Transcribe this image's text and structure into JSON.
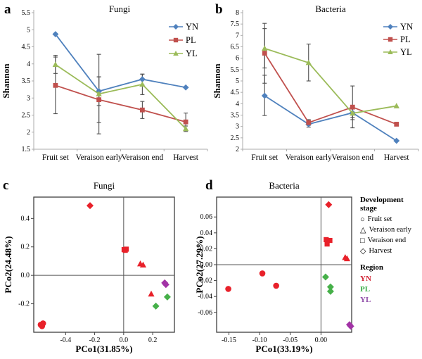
{
  "legend": {
    "stage_title": "Development stage",
    "stages": [
      {
        "label": "Fruit set",
        "shape": "circle",
        "glyph": "○"
      },
      {
        "label": "Veraison early",
        "shape": "triangle",
        "glyph": "△"
      },
      {
        "label": "Veraison end",
        "shape": "square",
        "glyph": "□"
      },
      {
        "label": "Harvest",
        "shape": "diamond",
        "glyph": "◇"
      }
    ],
    "region_title": "Region",
    "regions": [
      {
        "label": "YN",
        "color": "#D02030"
      },
      {
        "label": "PL",
        "color": "#3AAE49"
      },
      {
        "label": "YL",
        "color": "#8F4BA8"
      }
    ]
  },
  "chart_data": [
    {
      "id": "a",
      "panel_letter": "a",
      "type": "line",
      "title": "Fungi",
      "ylabel": "Shannon",
      "categories": [
        "Fruit set",
        "Veraison early",
        "Veraison end",
        "Harvest"
      ],
      "ylim": [
        1.5,
        5.5
      ],
      "yticks": [
        1.5,
        2,
        2.5,
        3,
        3.5,
        4,
        4.5,
        5,
        5.5
      ],
      "ytick_labels": [
        "1.5",
        "2",
        "2.5",
        "3",
        "3.5",
        "4",
        "4.5",
        "5",
        "5.5"
      ],
      "legend_position": "top-right",
      "series": [
        {
          "name": "YN",
          "color": "#4F81BD",
          "marker": "diamond",
          "values": [
            4.87,
            3.2,
            3.55,
            3.31
          ],
          "errors": [
            null,
            [
              2.78,
              3.62
            ],
            [
              3.38,
              3.7
            ],
            null
          ]
        },
        {
          "name": "PL",
          "color": "#C0504D",
          "marker": "square",
          "values": [
            3.37,
            2.95,
            2.65,
            2.3
          ],
          "errors": [
            [
              2.54,
              4.2
            ],
            [
              2.28,
              3.62
            ],
            [
              2.4,
              2.9
            ],
            [
              2.05,
              2.56
            ]
          ]
        },
        {
          "name": "YL",
          "color": "#9BBB59",
          "marker": "triangle",
          "values": [
            3.98,
            3.12,
            3.4,
            2.1
          ],
          "errors": [
            [
              3.72,
              4.25
            ],
            [
              1.95,
              4.28
            ],
            [
              3.1,
              3.7
            ],
            [
              2.02,
              2.18
            ]
          ]
        }
      ]
    },
    {
      "id": "b",
      "panel_letter": "b",
      "type": "line",
      "title": "Bacteria",
      "ylabel": "Shannon",
      "categories": [
        "Fruit set",
        "Veraison early",
        "Veraison end",
        "Harvest"
      ],
      "ylim": [
        2,
        8
      ],
      "yticks": [
        2,
        2.5,
        3,
        3.5,
        4,
        4.5,
        5,
        5.5,
        6,
        6.5,
        7,
        7.5,
        8
      ],
      "ytick_labels": [
        "2",
        "2.5",
        "3",
        "3.5",
        "4",
        "4.5",
        "5",
        "5.5",
        "6",
        "6.5",
        "7",
        "7.5",
        "8"
      ],
      "legend_position": "top-right",
      "series": [
        {
          "name": "YN",
          "color": "#4F81BD",
          "marker": "diamond",
          "values": [
            4.35,
            3.1,
            3.6,
            2.37
          ],
          "errors": [
            [
              3.48,
              5.25
            ],
            [
              2.97,
              3.25
            ],
            [
              3.3,
              3.9
            ],
            null
          ]
        },
        {
          "name": "PL",
          "color": "#C0504D",
          "marker": "square",
          "values": [
            6.22,
            3.17,
            3.85,
            3.1
          ],
          "errors": [
            [
              4.9,
              7.53
            ],
            [
              3.05,
              3.3
            ],
            [
              2.94,
              4.78
            ],
            null
          ]
        },
        {
          "name": "YL",
          "color": "#9BBB59",
          "marker": "triangle",
          "values": [
            6.43,
            5.8,
            3.58,
            3.9
          ],
          "errors": [
            [
              5.57,
              7.3
            ],
            [
              5.0,
              6.62
            ],
            [
              3.4,
              3.78
            ],
            null
          ]
        }
      ]
    },
    {
      "id": "c",
      "panel_letter": "c",
      "type": "scatter",
      "title": "Fungi",
      "xlabel": "PCo1(31.85%)",
      "ylabel": "PCo2(24.48%)",
      "xlim": [
        -0.62,
        0.35
      ],
      "ylim": [
        -0.4,
        0.55
      ],
      "xticks": [
        -0.4,
        -0.2,
        0,
        0.2
      ],
      "xtick_labels": [
        "-0.4",
        "-0.2",
        "0.0",
        "0.2"
      ],
      "yticks": [
        0.4,
        0.2,
        0,
        -0.2
      ],
      "ytick_labels": [
        "0.4",
        "0.2",
        "0.0",
        "-0.2"
      ],
      "origin_crosshair": true,
      "region_colors": {
        "YN": "#E8212A",
        "PL": "#46B049",
        "YL": "#A233A6"
      },
      "points": [
        {
          "x": -0.572,
          "y": -0.347,
          "stage": "Fruit set",
          "shape": "circle",
          "region": "YN"
        },
        {
          "x": -0.556,
          "y": -0.338,
          "stage": "Fruit set",
          "shape": "circle",
          "region": "YN"
        },
        {
          "x": -0.563,
          "y": -0.357,
          "stage": "Fruit set",
          "shape": "circle",
          "region": "YN"
        },
        {
          "x": -0.232,
          "y": 0.49,
          "stage": "Harvest",
          "shape": "diamond",
          "region": "YN"
        },
        {
          "x": 0.003,
          "y": 0.181,
          "stage": "Veraison end",
          "shape": "square",
          "region": "YN"
        },
        {
          "x": 0.018,
          "y": 0.184,
          "stage": "Veraison end",
          "shape": "square",
          "region": "YN"
        },
        {
          "x": 0.011,
          "y": 0.176,
          "stage": "Veraison end",
          "shape": "square",
          "region": "YN"
        },
        {
          "x": 0.115,
          "y": 0.081,
          "stage": "Veraison early",
          "shape": "triangle",
          "region": "YN"
        },
        {
          "x": 0.134,
          "y": 0.073,
          "stage": "Veraison early",
          "shape": "triangle",
          "region": "YN"
        },
        {
          "x": 0.19,
          "y": -0.131,
          "stage": "Veraison early",
          "shape": "triangle",
          "region": "YN"
        },
        {
          "x": 0.301,
          "y": -0.152,
          "stage": "Harvest",
          "shape": "diamond",
          "region": "PL"
        },
        {
          "x": 0.222,
          "y": -0.216,
          "stage": "Harvest",
          "shape": "diamond",
          "region": "PL"
        },
        {
          "x": 0.283,
          "y": -0.053,
          "stage": "Harvest",
          "shape": "diamond",
          "region": "YL"
        },
        {
          "x": 0.291,
          "y": -0.065,
          "stage": "Harvest",
          "shape": "diamond",
          "region": "YL"
        }
      ]
    },
    {
      "id": "d",
      "panel_letter": "d",
      "type": "scatter",
      "title": "Bacteria",
      "xlabel": "PCo1(33.19%)",
      "ylabel": "PCo2(27.29%)",
      "xlim": [
        -0.17,
        0.05
      ],
      "ylim": [
        -0.085,
        0.085
      ],
      "xticks": [
        -0.15,
        -0.1,
        -0.05,
        0
      ],
      "xtick_labels": [
        "-0.15",
        "-0.10",
        "-0.05",
        "0.00"
      ],
      "yticks": [
        0.06,
        0.04,
        0.02,
        0,
        -0.02,
        -0.04,
        -0.06
      ],
      "ytick_labels": [
        "0.06",
        "0.04",
        "0.02",
        "0.00",
        "-0.02",
        "-0.04",
        "-0.06"
      ],
      "origin_crosshair": true,
      "region_colors": {
        "YN": "#E8212A",
        "PL": "#46B049",
        "YL": "#A233A6"
      },
      "points": [
        {
          "x": -0.151,
          "y": -0.0305,
          "stage": "Fruit set",
          "shape": "circle",
          "region": "YN"
        },
        {
          "x": -0.0955,
          "y": -0.011,
          "stage": "Fruit set",
          "shape": "circle",
          "region": "YN"
        },
        {
          "x": -0.073,
          "y": -0.0265,
          "stage": "Fruit set",
          "shape": "circle",
          "region": "YN"
        },
        {
          "x": 0.0125,
          "y": 0.0755,
          "stage": "Harvest",
          "shape": "diamond",
          "region": "YN"
        },
        {
          "x": 0.0085,
          "y": 0.0315,
          "stage": "Veraison end",
          "shape": "square",
          "region": "YN"
        },
        {
          "x": 0.0145,
          "y": 0.0305,
          "stage": "Veraison end",
          "shape": "square",
          "region": "YN"
        },
        {
          "x": 0.01,
          "y": 0.026,
          "stage": "Veraison end",
          "shape": "square",
          "region": "YN"
        },
        {
          "x": 0.0395,
          "y": 0.009,
          "stage": "Veraison early",
          "shape": "triangle",
          "region": "YN"
        },
        {
          "x": 0.0425,
          "y": 0.0075,
          "stage": "Veraison early",
          "shape": "triangle",
          "region": "YN"
        },
        {
          "x": 0.0075,
          "y": -0.0155,
          "stage": "Harvest",
          "shape": "diamond",
          "region": "PL"
        },
        {
          "x": 0.0155,
          "y": -0.028,
          "stage": "Harvest",
          "shape": "diamond",
          "region": "PL"
        },
        {
          "x": 0.0155,
          "y": -0.0335,
          "stage": "Harvest",
          "shape": "diamond",
          "region": "PL"
        },
        {
          "x": 0.0465,
          "y": -0.0755,
          "stage": "Harvest",
          "shape": "diamond",
          "region": "YL"
        },
        {
          "x": 0.0485,
          "y": -0.0775,
          "stage": "Harvest",
          "shape": "diamond",
          "region": "YL"
        }
      ]
    }
  ]
}
